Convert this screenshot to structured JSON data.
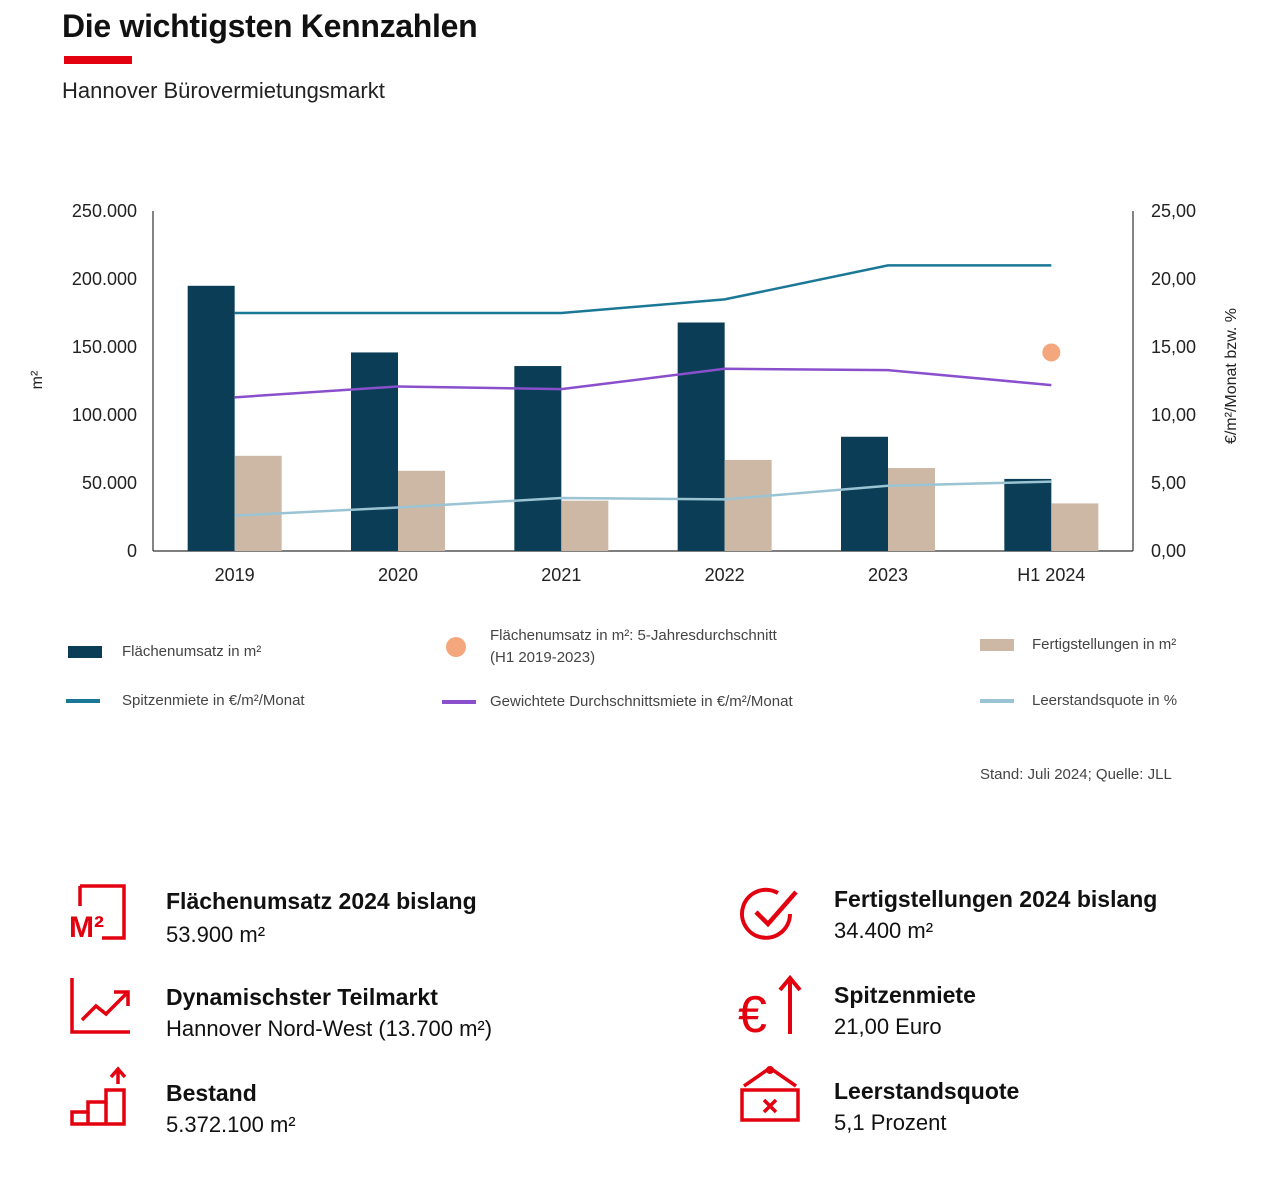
{
  "header": {
    "title": "Die wichtigsten Kennzahlen",
    "subtitle": "Hannover Bürovermietungsmarkt",
    "accent_color": "#e3000f"
  },
  "chart_data": {
    "type": "bar",
    "categories": [
      "2019",
      "2020",
      "2021",
      "2022",
      "2023",
      "H1 2024"
    ],
    "y_left_label": "m²",
    "y_right_label": "€/m²/Monat bzw. %",
    "y_left_range": [
      0,
      250000
    ],
    "y_right_range": [
      0,
      25
    ],
    "y_left_ticks": [
      "0",
      "50.000",
      "100.000",
      "150.000",
      "200.000",
      "250.000"
    ],
    "y_right_ticks": [
      "0,00",
      "5,00",
      "10,00",
      "15,00",
      "20,00",
      "25,00"
    ],
    "grid": false,
    "legend_position": "bottom",
    "bar_series": [
      {
        "name": "Flächenumsatz in m²",
        "color": "#0b3d56",
        "axis": "left",
        "values": [
          195000,
          146000,
          136000,
          168000,
          84000,
          53000
        ]
      },
      {
        "name": "Fertigstellungen in m²",
        "color": "#cdb8a6",
        "axis": "left",
        "values": [
          70000,
          59000,
          37000,
          67000,
          61000,
          35000
        ]
      }
    ],
    "line_series": [
      {
        "name": "Spitzenmiete in €/m²/Monat",
        "color": "#1a7896",
        "axis": "right",
        "values": [
          17.5,
          17.5,
          17.5,
          18.5,
          21.0,
          21.0
        ]
      },
      {
        "name": "Gewichtete Durchschnittsmiete in €/m²/Monat",
        "color": "#8a4fcc",
        "axis": "right",
        "values": [
          11.3,
          12.1,
          11.9,
          13.4,
          13.3,
          12.2
        ]
      },
      {
        "name": "Leerstandsquote in %",
        "color": "#9ac4d3",
        "axis": "right",
        "values": [
          2.6,
          3.2,
          3.9,
          3.8,
          4.8,
          5.1
        ]
      }
    ],
    "point_series": [
      {
        "name": "Flächenumsatz in m²: 5-Jahresdurchschnitt",
        "name_line2": "(H1 2019-2023)",
        "color": "#f4a77c",
        "axis": "right",
        "category": "H1 2024",
        "value": 14.6
      }
    ]
  },
  "source": "Stand: Juli 2024; Quelle: JLL",
  "kpis": [
    {
      "icon": "m2-square-icon",
      "label": "Flächenumsatz 2024 bislang",
      "value": "53.900 m²"
    },
    {
      "icon": "check-circle-icon",
      "label": "Fertigstellungen 2024 bislang",
      "value": "34.400 m²"
    },
    {
      "icon": "trend-up-icon",
      "label": "Dynamischster Teilmarkt",
      "value": "Hannover Nord-West (13.700 m²)"
    },
    {
      "icon": "euro-up-icon",
      "label": "Spitzenmiete",
      "value": "21,00 Euro"
    },
    {
      "icon": "stairs-up-icon",
      "label": "Bestand",
      "value": "5.372.100 m²"
    },
    {
      "icon": "vacant-sign-icon",
      "label": "Leerstandsquote",
      "value": "5,1 Prozent"
    }
  ],
  "icon_color": "#e3000f"
}
